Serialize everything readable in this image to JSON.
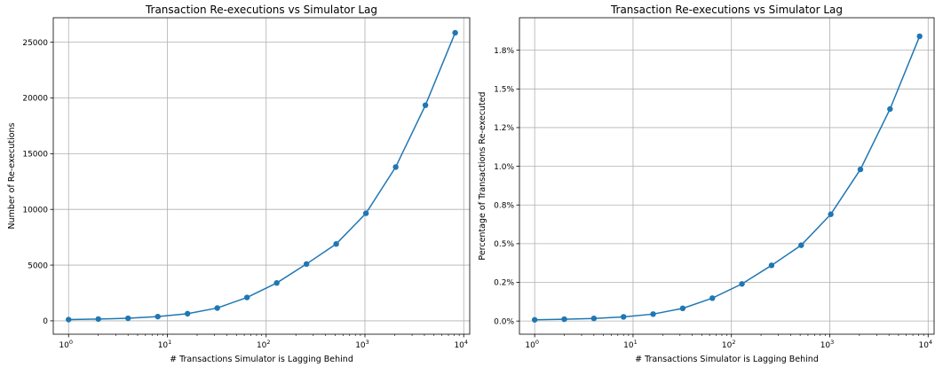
{
  "chart_data": [
    {
      "type": "line",
      "title": "Transaction Re-executions vs Simulator Lag",
      "xlabel": "# Transactions Simulator is Lagging Behind",
      "ylabel": "Number of Re-executions",
      "xscale": "log",
      "xlim": [
        0.7,
        11500
      ],
      "ylim": [
        -1200,
        27200
      ],
      "x_ticks": [
        1,
        10,
        100,
        1000,
        10000
      ],
      "x_tick_labels": [
        {
          "base": "10",
          "exp": "0"
        },
        {
          "base": "10",
          "exp": "1"
        },
        {
          "base": "10",
          "exp": "2"
        },
        {
          "base": "10",
          "exp": "3"
        },
        {
          "base": "10",
          "exp": "4"
        }
      ],
      "y_ticks": [
        0,
        5000,
        10000,
        15000,
        20000,
        25000
      ],
      "y_tick_labels": [
        "0",
        "5000",
        "10000",
        "15000",
        "20000",
        "25000"
      ],
      "grid": true,
      "marker": "circle",
      "color": "#1f77b4",
      "x": [
        1,
        2,
        4,
        8,
        16,
        32,
        64,
        128,
        256,
        512,
        1024,
        2048,
        4096,
        8192
      ],
      "y": [
        110,
        160,
        230,
        380,
        640,
        1150,
        2100,
        3400,
        5100,
        6900,
        9650,
        13800,
        19350,
        25850
      ]
    },
    {
      "type": "line",
      "title": "Transaction Re-executions vs Simulator Lag",
      "xlabel": "# Transactions Simulator is Lagging Behind",
      "ylabel": "Percentage of Transactions Re-executed",
      "xscale": "log",
      "xlim": [
        0.7,
        11500
      ],
      "ylim": [
        -0.085,
        1.96
      ],
      "x_ticks": [
        1,
        10,
        100,
        1000,
        10000
      ],
      "x_tick_labels": [
        {
          "base": "10",
          "exp": "0"
        },
        {
          "base": "10",
          "exp": "1"
        },
        {
          "base": "10",
          "exp": "2"
        },
        {
          "base": "10",
          "exp": "3"
        },
        {
          "base": "10",
          "exp": "4"
        }
      ],
      "y_ticks": [
        0,
        0.25,
        0.5,
        0.75,
        1.0,
        1.25,
        1.5,
        1.75
      ],
      "y_tick_labels": [
        "0.0%",
        "0.2%",
        "0.5%",
        "0.8%",
        "1.0%",
        "1.2%",
        "1.5%",
        "1.8%"
      ],
      "grid": true,
      "marker": "circle",
      "color": "#1f77b4",
      "x": [
        1,
        2,
        4,
        8,
        16,
        32,
        64,
        128,
        256,
        512,
        1024,
        2048,
        4096,
        8192
      ],
      "y": [
        0.008,
        0.012,
        0.017,
        0.027,
        0.045,
        0.082,
        0.148,
        0.24,
        0.36,
        0.49,
        0.69,
        0.98,
        1.37,
        1.84
      ]
    }
  ]
}
